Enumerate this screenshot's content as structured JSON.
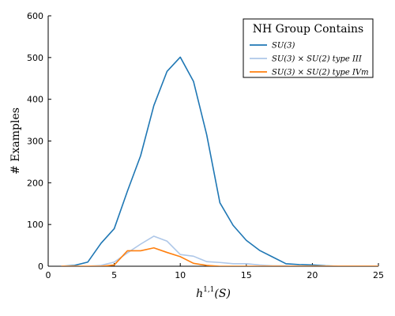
{
  "chart_data": {
    "type": "line",
    "xlabel": "h^{1,1}(S)",
    "xlabel_main": "h",
    "xlabel_sup": "1,1",
    "xlabel_tail": "(S)",
    "ylabel": "# Examples",
    "xlim": [
      0,
      25
    ],
    "ylim": [
      0,
      600
    ],
    "xticks": [
      0,
      5,
      10,
      15,
      20,
      25
    ],
    "yticks": [
      0,
      100,
      200,
      300,
      400,
      500,
      600
    ],
    "grid": false,
    "legend": {
      "title": "NH Group Contains",
      "placement": "top-right"
    },
    "series": [
      {
        "name": "SU(3)",
        "color": "#1f77b4",
        "x": [
          1,
          2,
          3,
          4,
          5,
          6,
          7,
          8,
          9,
          10,
          11,
          12,
          13,
          14,
          15,
          16,
          17,
          18,
          19,
          20,
          21,
          22,
          23,
          24,
          25
        ],
        "y": [
          0,
          2,
          10,
          55,
          90,
          180,
          265,
          385,
          467,
          501,
          443,
          315,
          152,
          98,
          62,
          38,
          22,
          6,
          4,
          3,
          1,
          0,
          0,
          0,
          0
        ]
      },
      {
        "name": "SU(3) × SU(2) type III",
        "color": "#aec7e8",
        "x": [
          1,
          2,
          3,
          4,
          5,
          6,
          7,
          8,
          9,
          10,
          11,
          12,
          13,
          14,
          15,
          16,
          17,
          18,
          19,
          20,
          21,
          22,
          23,
          24,
          25
        ],
        "y": [
          0,
          0,
          0,
          2,
          10,
          32,
          53,
          72,
          60,
          28,
          24,
          11,
          9,
          6,
          6,
          3,
          1,
          1,
          0,
          0,
          0,
          0,
          0,
          0,
          0
        ]
      },
      {
        "name": "SU(3) × SU(2) type IVm",
        "color": "#ff7f0e",
        "x": [
          1,
          2,
          3,
          4,
          5,
          6,
          7,
          8,
          9,
          10,
          11,
          12,
          13,
          14,
          15,
          16,
          17,
          18,
          19,
          20,
          21,
          22,
          23,
          24,
          25
        ],
        "y": [
          0,
          0,
          0,
          0,
          3,
          37,
          37,
          44,
          33,
          23,
          7,
          2,
          0,
          0,
          0,
          0,
          0,
          0,
          0,
          0,
          0,
          0,
          0,
          0,
          0
        ]
      }
    ]
  }
}
